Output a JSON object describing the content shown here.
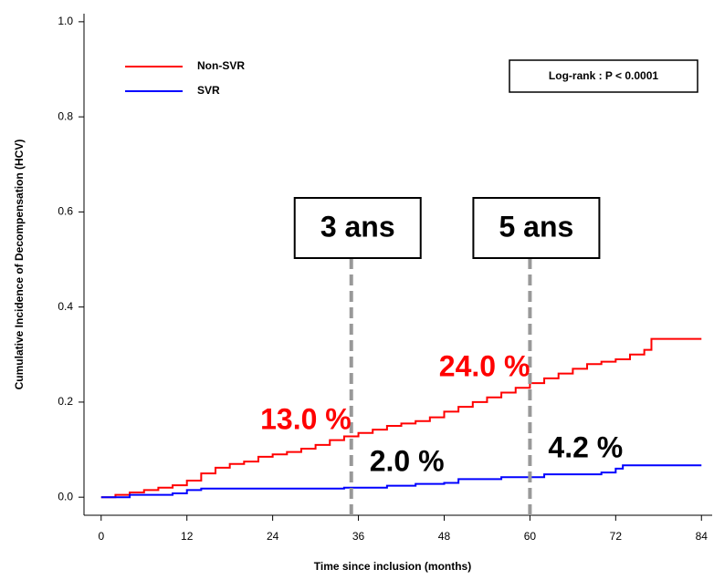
{
  "chart_data": {
    "type": "step",
    "x_label": "Time since inclusion (months)",
    "y_label": "Cumulative Incidence of Decompensation (HCV)",
    "xlim": [
      -2.4,
      85.5
    ],
    "ylim": [
      -0.038,
      1.017
    ],
    "xticks": [
      0,
      12,
      24,
      36,
      48,
      60,
      72,
      84
    ],
    "yticks": [
      {
        "value": 0,
        "label": "0.0"
      },
      0.2,
      0.4,
      0.6,
      0.8,
      {
        "value": 1,
        "label": "1.0"
      }
    ],
    "series": [
      {
        "name": "Non-SVR",
        "color": "#ff0000",
        "x": [
          0,
          2,
          4,
          6,
          8,
          10,
          12,
          14,
          16,
          18,
          20,
          22,
          24,
          26,
          28,
          30,
          32,
          34,
          36,
          38,
          40,
          42,
          44,
          46,
          48,
          50,
          52,
          54,
          56,
          58,
          60,
          62,
          64,
          66,
          68,
          70,
          72,
          74,
          76,
          77,
          84
        ],
        "values": [
          0,
          0.005,
          0.01,
          0.015,
          0.02,
          0.025,
          0.035,
          0.05,
          0.062,
          0.07,
          0.075,
          0.085,
          0.09,
          0.095,
          0.102,
          0.11,
          0.12,
          0.128,
          0.135,
          0.142,
          0.15,
          0.155,
          0.16,
          0.168,
          0.18,
          0.19,
          0.2,
          0.21,
          0.22,
          0.23,
          0.24,
          0.25,
          0.26,
          0.27,
          0.28,
          0.285,
          0.29,
          0.3,
          0.31,
          0.333,
          0.333
        ]
      },
      {
        "name": "SVR",
        "color": "#0000ff",
        "x": [
          0,
          4,
          10,
          12,
          14,
          24,
          34,
          40,
          44,
          48,
          50,
          56,
          60,
          62,
          70,
          72,
          73,
          84
        ],
        "values": [
          0,
          0.005,
          0.008,
          0.015,
          0.018,
          0.018,
          0.02,
          0.024,
          0.028,
          0.03,
          0.038,
          0.042,
          0.042,
          0.048,
          0.052,
          0.06,
          0.067,
          0.067
        ]
      }
    ],
    "markers": [
      {
        "label": "3 ans",
        "x": 35,
        "non_svr": "13.0 %",
        "svr": "2.0 %"
      },
      {
        "label": "5 ans",
        "x": 60,
        "non_svr": "24.0 %",
        "svr": "4.2 %"
      }
    ],
    "annotation": "Log-rank : P < 0.0001"
  }
}
